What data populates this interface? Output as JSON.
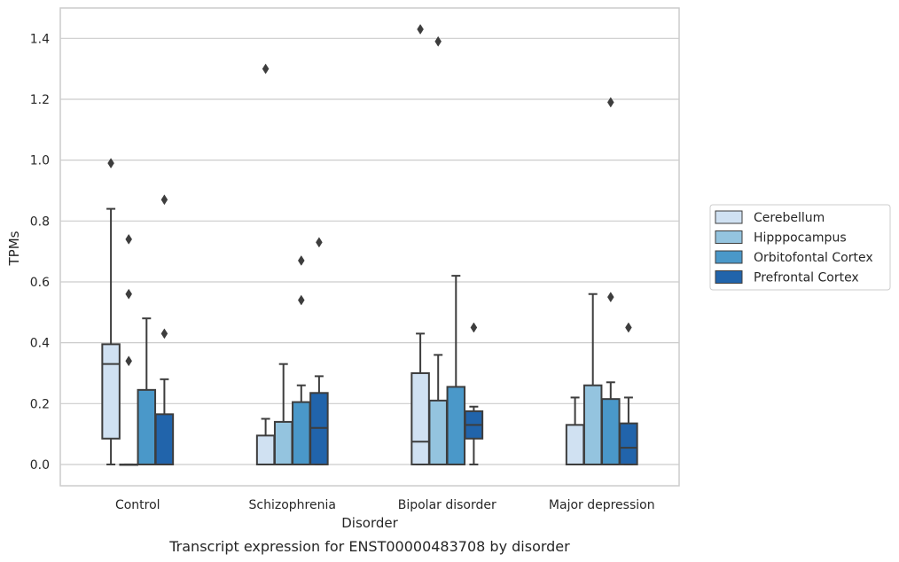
{
  "chart_data": {
    "type": "box",
    "title": "",
    "caption": "Transcript expression for ENST00000483708 by disorder",
    "xlabel": "Disorder",
    "ylabel": "TPMs",
    "ylim": [
      -0.07,
      1.5
    ],
    "yticks": [
      0.0,
      0.2,
      0.4,
      0.6,
      0.8,
      1.0,
      1.2,
      1.4
    ],
    "ytick_labels": [
      "0.0",
      "0.2",
      "0.4",
      "0.6",
      "0.8",
      "1.0",
      "1.2",
      "1.4"
    ],
    "grid": true,
    "legend_position": "right",
    "categories": [
      "Control",
      "Schizophrenia",
      "Bipolar disorder",
      "Major depression"
    ],
    "series": [
      {
        "name": "Cerebellum",
        "color": "#d0e1f2",
        "boxes": [
          {
            "whislo": 0.0,
            "q1": 0.085,
            "med": 0.33,
            "q3": 0.395,
            "whishi": 0.84,
            "fliers": [
              0.99
            ]
          },
          {
            "whislo": 0.0,
            "q1": 0.0,
            "med": 0.0,
            "q3": 0.095,
            "whishi": 0.15,
            "fliers": [
              1.3
            ]
          },
          {
            "whislo": 0.0,
            "q1": 0.0,
            "med": 0.075,
            "q3": 0.3,
            "whishi": 0.43,
            "fliers": [
              1.43
            ]
          },
          {
            "whislo": 0.0,
            "q1": 0.0,
            "med": 0.0,
            "q3": 0.13,
            "whishi": 0.22,
            "fliers": []
          }
        ]
      },
      {
        "name": "Hipppocampus",
        "color": "#94c4df",
        "boxes": [
          {
            "whislo": 0.0,
            "q1": 0.0,
            "med": 0.0,
            "q3": 0.0,
            "whishi": 0.0,
            "fliers": [
              0.74,
              0.56,
              0.34
            ]
          },
          {
            "whislo": 0.0,
            "q1": 0.0,
            "med": 0.0,
            "q3": 0.14,
            "whishi": 0.33,
            "fliers": []
          },
          {
            "whislo": 0.0,
            "q1": 0.0,
            "med": 0.0,
            "q3": 0.21,
            "whishi": 0.36,
            "fliers": [
              1.39
            ]
          },
          {
            "whislo": 0.0,
            "q1": 0.0,
            "med": 0.0,
            "q3": 0.26,
            "whishi": 0.56,
            "fliers": []
          }
        ]
      },
      {
        "name": "Orbitofontal Cortex",
        "color": "#4a98c9",
        "boxes": [
          {
            "whislo": 0.0,
            "q1": 0.0,
            "med": 0.0,
            "q3": 0.245,
            "whishi": 0.48,
            "fliers": []
          },
          {
            "whislo": 0.0,
            "q1": 0.0,
            "med": 0.0,
            "q3": 0.205,
            "whishi": 0.26,
            "fliers": [
              0.67,
              0.54
            ]
          },
          {
            "whislo": 0.0,
            "q1": 0.0,
            "med": 0.0,
            "q3": 0.255,
            "whishi": 0.62,
            "fliers": []
          },
          {
            "whislo": 0.0,
            "q1": 0.0,
            "med": 0.0,
            "q3": 0.215,
            "whishi": 0.27,
            "fliers": [
              0.55,
              1.19
            ]
          }
        ]
      },
      {
        "name": "Prefrontal Cortex",
        "color": "#2164ab",
        "boxes": [
          {
            "whislo": 0.0,
            "q1": 0.0,
            "med": 0.0,
            "q3": 0.165,
            "whishi": 0.28,
            "fliers": [
              0.87,
              0.43
            ]
          },
          {
            "whislo": 0.0,
            "q1": 0.0,
            "med": 0.12,
            "q3": 0.235,
            "whishi": 0.29,
            "fliers": [
              0.73
            ]
          },
          {
            "whislo": 0.0,
            "q1": 0.085,
            "med": 0.13,
            "q3": 0.175,
            "whishi": 0.19,
            "fliers": [
              0.45
            ]
          },
          {
            "whislo": 0.0,
            "q1": 0.0,
            "med": 0.055,
            "q3": 0.135,
            "whishi": 0.22,
            "fliers": [
              0.45
            ]
          }
        ]
      }
    ]
  }
}
